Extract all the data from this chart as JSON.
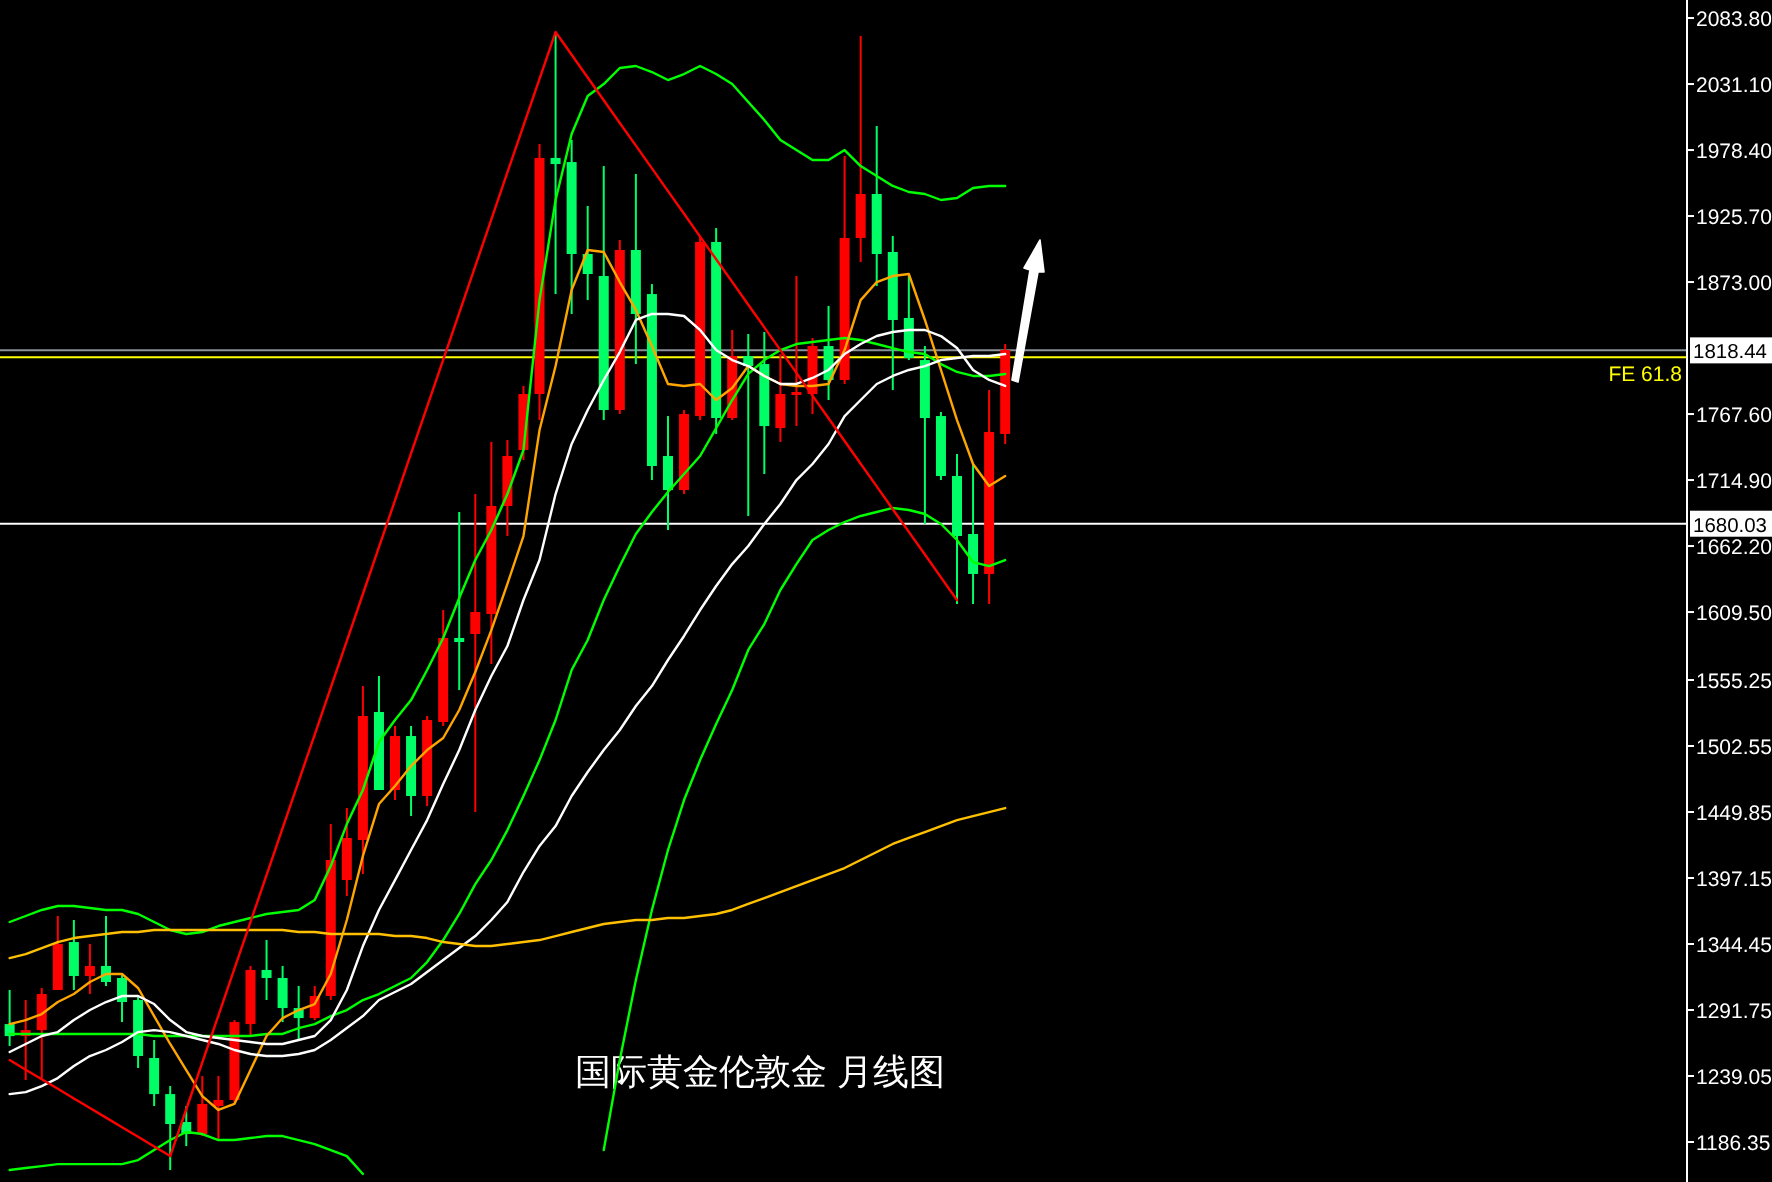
{
  "chart_data": {
    "type": "candlestick",
    "tick_labels": "y",
    "grid": false,
    "categories": [
      null,
      null,
      null,
      null,
      null,
      null,
      null,
      null,
      null,
      null,
      null,
      null,
      null,
      null,
      null,
      null,
      null,
      null,
      null,
      null,
      null,
      null,
      null,
      null,
      null,
      null,
      null,
      null,
      null,
      null,
      null,
      null,
      null,
      null,
      null,
      null,
      null,
      null,
      null,
      null,
      null,
      null,
      null,
      null,
      null,
      null,
      null,
      null,
      null,
      null,
      null,
      null,
      null,
      null,
      null,
      null,
      null,
      null,
      null,
      null,
      null,
      null,
      null
    ],
    "ylim": [
      1154.4,
      2098.2
    ],
    "yticks": [
      {
        "value": 2083.8,
        "label": "2083.80"
      },
      {
        "value": 2031.1,
        "label": "2031.10"
      },
      {
        "value": 1978.4,
        "label": "1978.40"
      },
      {
        "value": 1925.7,
        "label": "1925.70"
      },
      {
        "value": 1873,
        "label": "1873.00"
      },
      {
        "value": 1767.6,
        "label": "1767.60"
      },
      {
        "value": 1714.9,
        "label": "1714.90"
      },
      {
        "value": 1662.2,
        "label": "1662.20"
      },
      {
        "value": 1609.5,
        "label": "1609.50"
      },
      {
        "value": 1555.25,
        "label": "1555.25"
      },
      {
        "value": 1502.55,
        "label": "1502.55"
      },
      {
        "value": 1449.85,
        "label": "1449.85"
      },
      {
        "value": 1397.15,
        "label": "1397.15"
      },
      {
        "value": 1344.45,
        "label": "1344.45"
      },
      {
        "value": 1291.75,
        "label": "1291.75"
      },
      {
        "value": 1239.05,
        "label": "1239.05"
      },
      {
        "value": 1186.35,
        "label": "1186.35"
      }
    ],
    "ref_lines": [
      {
        "axis": "y",
        "value": 1818.44,
        "label": "1818.44",
        "color": "#8a9098"
      },
      {
        "axis": "y",
        "value": 1813,
        "label": "FE 61.8",
        "color": "#ffff00"
      },
      {
        "axis": "y",
        "value": 1680.03,
        "label": "1680.03",
        "color": "#ffffff"
      }
    ],
    "annotations": [
      "国际黄金伦敦金 月线图"
    ],
    "ohlc": [
      [
        1280.5,
        1307.7,
        1263.0,
        1270.9
      ],
      [
        1270.9,
        1299.7,
        1235.8,
        1275.7
      ],
      [
        1275.7,
        1309.3,
        1235.8,
        1304.5
      ],
      [
        1307.7,
        1366.8,
        1307.7,
        1344.4
      ],
      [
        1346.0,
        1363.6,
        1307.7,
        1318.9
      ],
      [
        1318.9,
        1344.4,
        1304.5,
        1326.9
      ],
      [
        1326.9,
        1366.8,
        1310.9,
        1314.1
      ],
      [
        1317.3,
        1320.5,
        1282.1,
        1298.1
      ],
      [
        1299.7,
        1302.9,
        1245.4,
        1255.0
      ],
      [
        1253.4,
        1267.8,
        1215.1,
        1224.6
      ],
      [
        1224.6,
        1231.0,
        1164.0,
        1200.7
      ],
      [
        1202.3,
        1215.1,
        1183.1,
        1192.7
      ],
      [
        1192.7,
        1239.0,
        1191.1,
        1216.7
      ],
      [
        1215.1,
        1239.0,
        1187.9,
        1219.9
      ],
      [
        1219.9,
        1283.7,
        1218.3,
        1282.1
      ],
      [
        1280.5,
        1326.9,
        1270.9,
        1323.7
      ],
      [
        1323.7,
        1347.6,
        1299.7,
        1317.3
      ],
      [
        1317.3,
        1326.9,
        1282.1,
        1293.3
      ],
      [
        1293.3,
        1310.9,
        1267.8,
        1285.3
      ],
      [
        1285.3,
        1310.9,
        1283.7,
        1302.9
      ],
      [
        1302.9,
        1440.2,
        1299.7,
        1411.5
      ],
      [
        1395.5,
        1453.0,
        1382.7,
        1429.1
      ],
      [
        1427.5,
        1550.4,
        1400.3,
        1526.5
      ],
      [
        1529.7,
        1558.4,
        1467.4,
        1467.4
      ],
      [
        1467.4,
        1518.5,
        1459.4,
        1510.5
      ],
      [
        1510.5,
        1518.5,
        1446.6,
        1462.6
      ],
      [
        1462.6,
        1526.5,
        1454.6,
        1523.3
      ],
      [
        1521.7,
        1611.1,
        1518.5,
        1588.8
      ],
      [
        1588.8,
        1689.4,
        1547.2,
        1585.6
      ],
      [
        1592.0,
        1703.7,
        1449.8,
        1609.5
      ],
      [
        1607.9,
        1745.3,
        1568.0,
        1694.2
      ],
      [
        1694.2,
        1746.9,
        1670.2,
        1734.1
      ],
      [
        1738.9,
        1790.0,
        1730.9,
        1783.6
      ],
      [
        1783.6,
        1983.2,
        1762.8,
        1972.1
      ],
      [
        1972.1,
        2072.6,
        1863.4,
        1967.2
      ],
      [
        1968.8,
        1986.4,
        1847.5,
        1895.4
      ],
      [
        1895.4,
        1933.7,
        1858.6,
        1879.4
      ],
      [
        1877.8,
        1965.6,
        1762.8,
        1770.8
      ],
      [
        1770.8,
        1906.6,
        1767.6,
        1898.6
      ],
      [
        1898.6,
        1959.3,
        1807.5,
        1847.5
      ],
      [
        1863.4,
        1871.4,
        1714.9,
        1726.1
      ],
      [
        1734.1,
        1766.0,
        1675.0,
        1706.9
      ],
      [
        1706.9,
        1770.8,
        1703.7,
        1767.6
      ],
      [
        1766.0,
        1909.8,
        1762.8,
        1905.0
      ],
      [
        1905.0,
        1916.1,
        1751.7,
        1764.4
      ],
      [
        1764.4,
        1834.7,
        1762.8,
        1813.9
      ],
      [
        1813.9,
        1831.5,
        1686.2,
        1805.9
      ],
      [
        1807.5,
        1833.1,
        1719.7,
        1758.0
      ],
      [
        1756.4,
        1815.5,
        1745.3,
        1783.6
      ],
      [
        1783.6,
        1877.8,
        1758.0,
        1785.2
      ],
      [
        1783.6,
        1828.3,
        1767.6,
        1821.9
      ],
      [
        1821.9,
        1853.9,
        1778.8,
        1794.8
      ],
      [
        1794.8,
        1973.6,
        1791.6,
        1908.2
      ],
      [
        1908.2,
        2069.5,
        1889.0,
        1943.3
      ],
      [
        1943.3,
        1997.6,
        1869.8,
        1895.4
      ],
      [
        1897.0,
        1909.8,
        1786.8,
        1842.7
      ],
      [
        1844.3,
        1877.8,
        1810.7,
        1812.3
      ],
      [
        1810.7,
        1821.9,
        1679.8,
        1764.4
      ],
      [
        1766.0,
        1769.2,
        1714.9,
        1718.1
      ],
      [
        1718.1,
        1735.7,
        1615.9,
        1670.2
      ],
      [
        1671.8,
        1727.7,
        1615.9,
        1639.9
      ],
      [
        1639.9,
        1786.8,
        1615.9,
        1753.3
      ],
      [
        1751.7,
        1823.5,
        1743.7,
        1818.7
      ]
    ],
    "series": [
      {
        "type": "line",
        "color": "#00ff00",
        "values": [
          1362.0,
          1366.8,
          1371.6,
          1374.8,
          1374.8,
          1373.2,
          1371.6,
          1371.6,
          1368.4,
          1362.0,
          1355.6,
          1352.4,
          1354.0,
          1358.8,
          1362.0,
          1365.2,
          1368.4,
          1370.0,
          1371.6,
          1379.6,
          1406.7,
          1440.2,
          1467.4,
          1505.7,
          1523.3,
          1539.2,
          1563.2,
          1588.8,
          1620.7,
          1651.0,
          1675.0,
          1703.7,
          1738.9,
          1858.6,
          1938.5,
          1991.2,
          2021.5,
          2031.1,
          2043.9,
          2045.5,
          2040.7,
          2034.3,
          2039.1,
          2045.5,
          2039.1,
          2031.1,
          2016.8,
          2002.4,
          1986.4,
          1978.4,
          1970.4,
          1970.4,
          1978.4,
          1965.6,
          1957.7,
          1949.7,
          1944.9,
          1943.3,
          1938.5,
          1940.1,
          1948.1,
          1949.7,
          1949.7
        ]
      },
      {
        "type": "line",
        "color": "#00ff00",
        "values": [
          1272.6,
          1272.6,
          1272.6,
          1272.6,
          1272.6,
          1272.6,
          1272.6,
          1272.6,
          1272.6,
          1271.0,
          1271.0,
          1271.0,
          1271.0,
          1271.0,
          1271.0,
          1271.0,
          1272.6,
          1272.6,
          1277.3,
          1280.5,
          1286.9,
          1291.7,
          1299.7,
          1304.5,
          1310.9,
          1317.3,
          1330.0,
          1347.6,
          1368.4,
          1392.3,
          1411.5,
          1435.4,
          1462.6,
          1491.3,
          1523.3,
          1563.2,
          1587.2,
          1619.1,
          1646.2,
          1671.8,
          1689.4,
          1705.3,
          1719.7,
          1734.1,
          1756.4,
          1778.8,
          1799.6,
          1810.7,
          1818.7,
          1823.5,
          1825.1,
          1826.7,
          1828.3,
          1826.7,
          1823.5,
          1820.3,
          1817.1,
          1815.5,
          1807.5,
          1801.2,
          1798.0,
          1798.0,
          1799.6
        ]
      },
      {
        "type": "line",
        "color": "#00ff00",
        "values": [
          1164.0,
          1165.6,
          1167.1,
          1168.7,
          1168.7,
          1168.7,
          1168.7,
          1168.7,
          1171.9,
          1179.9,
          1187.9,
          1194.3,
          1192.7,
          1187.9,
          1187.9,
          1189.5,
          1191.1,
          1191.1,
          1187.9,
          1184.7,
          1179.9,
          1175.1,
          1160.8,
          null,
          null,
          null,
          null,
          null,
          null,
          null,
          null,
          null,
          null,
          null,
          null,
          null,
          null,
          1179.9,
          1251.8,
          1315.7,
          1371.6,
          1419.5,
          1459.4,
          1491.3,
          1520.1,
          1547.2,
          1579.2,
          1599.9,
          1627.1,
          1647.8,
          1667.0,
          1675.0,
          1681.4,
          1686.2,
          1689.4,
          1692.6,
          1691.0,
          1687.8,
          1679.8,
          1667.0,
          1649.4,
          1646.2,
          1651.0
        ]
      },
      {
        "type": "line",
        "color": "#ffa500",
        "values": [
          1280.5,
          1283.7,
          1288.5,
          1298.1,
          1304.5,
          1314.1,
          1320.5,
          1320.5,
          1309.3,
          1286.9,
          1264.6,
          1243.8,
          1223.0,
          1211.9,
          1216.7,
          1243.8,
          1271.0,
          1285.3,
          1291.7,
          1296.5,
          1320.5,
          1363.6,
          1414.7,
          1456.2,
          1470.6,
          1486.5,
          1499.3,
          1508.9,
          1531.3,
          1561.6,
          1595.1,
          1631.9,
          1670.2,
          1754.8,
          1805.9,
          1866.6,
          1898.6,
          1897.0,
          1873.0,
          1850.7,
          1821.9,
          1791.6,
          1790.0,
          1791.6,
          1778.8,
          1788.4,
          1805.9,
          1798.0,
          1791.6,
          1790.0,
          1790.0,
          1791.6,
          1818.7,
          1858.6,
          1873.0,
          1877.8,
          1879.4,
          1842.7,
          1802.8,
          1762.8,
          1727.7,
          1710.1,
          1718.1
        ]
      },
      {
        "type": "line",
        "color": "#ffffff",
        "values": [
          1258.2,
          1264.6,
          1271.0,
          1274.1,
          1283.7,
          1291.7,
          1298.1,
          1302.9,
          1302.9,
          1296.5,
          1283.7,
          1274.1,
          1271.0,
          1269.4,
          1267.8,
          1266.2,
          1264.6,
          1264.6,
          1267.8,
          1271.0,
          1283.7,
          1307.7,
          1342.8,
          1371.6,
          1395.5,
          1419.5,
          1443.4,
          1472.2,
          1499.3,
          1531.3,
          1558.4,
          1582.4,
          1619.1,
          1651.0,
          1703.7,
          1743.7,
          1770.8,
          1794.8,
          1817.1,
          1842.7,
          1847.5,
          1847.5,
          1845.9,
          1834.7,
          1818.7,
          1810.7,
          1805.9,
          1798.0,
          1791.6,
          1791.6,
          1796.4,
          1802.8,
          1815.5,
          1823.5,
          1829.9,
          1833.1,
          1834.7,
          1834.7,
          1829.9,
          1820.3,
          1802.8,
          1794.8,
          1790.0
        ]
      },
      {
        "type": "line",
        "color": "#ffffff",
        "values": [
          1224.6,
          1226.2,
          1231.0,
          1237.4,
          1247.0,
          1255.0,
          1259.8,
          1266.2,
          1274.1,
          1275.7,
          1274.1,
          1271.0,
          1267.8,
          1264.6,
          1259.8,
          1256.6,
          1255.0,
          1255.0,
          1256.6,
          1259.8,
          1267.8,
          1277.3,
          1286.9,
          1299.7,
          1306.1,
          1312.5,
          1322.1,
          1331.6,
          1341.2,
          1350.8,
          1363.6,
          1378.0,
          1401.9,
          1422.7,
          1438.6,
          1462.6,
          1481.8,
          1499.3,
          1515.3,
          1534.5,
          1550.4,
          1571.2,
          1590.4,
          1611.1,
          1630.3,
          1647.8,
          1662.2,
          1679.8,
          1695.8,
          1714.9,
          1727.7,
          1743.7,
          1766.0,
          1778.8,
          1791.6,
          1798.0,
          1802.8,
          1805.9,
          1810.7,
          1812.3,
          1813.9,
          1813.9,
          1815.5
        ]
      },
      {
        "type": "line",
        "color": "#ffc000",
        "values": [
          1333.2,
          1336.4,
          1341.2,
          1346.0,
          1349.2,
          1350.8,
          1352.4,
          1354.0,
          1354.0,
          1355.6,
          1355.6,
          1355.6,
          1355.6,
          1355.6,
          1355.6,
          1355.6,
          1355.6,
          1355.6,
          1354.0,
          1354.0,
          1352.4,
          1352.4,
          1352.4,
          1352.4,
          1350.8,
          1350.8,
          1349.2,
          1346.0,
          1344.4,
          1342.8,
          1342.8,
          1344.4,
          1346.0,
          1347.6,
          1350.8,
          1354.0,
          1357.2,
          1360.4,
          1362.0,
          1363.6,
          1363.6,
          1365.2,
          1365.2,
          1366.8,
          1368.4,
          1371.6,
          1376.4,
          1381.1,
          1385.9,
          1390.7,
          1395.5,
          1400.3,
          1405.1,
          1411.5,
          1417.9,
          1424.3,
          1429.1,
          1433.8,
          1438.6,
          1443.4,
          1446.6,
          1449.8,
          1453.0
        ]
      },
      {
        "type": "line",
        "color": "#ff0000",
        "values": [
          1251.8,
          1244.1,
          1236.5,
          1228.8,
          1221.1,
          1213.5,
          1205.8,
          1198.1,
          1190.5,
          1182.8,
          1175.1,
          1212.5,
          1249.9,
          1287.3,
          1324.7,
          1362.1,
          1399.5,
          1436.9,
          1474.3,
          1511.7,
          1549.1,
          1586.5,
          1623.9,
          1661.3,
          1698.7,
          1736.1,
          1773.5,
          1810.9,
          1848.3,
          1885.7,
          1923.1,
          1960.5,
          1997.9,
          2035.3,
          2072.6,
          2054.5,
          2036.3,
          2018.2,
          2000.0,
          1981.9,
          1963.8,
          1945.6,
          1927.5,
          1909.3,
          1891.2,
          1873.1,
          1854.9,
          1836.8,
          1818.6,
          1800.5,
          1782.3,
          1764.2,
          1746.1,
          1727.9,
          1709.8,
          1691.6,
          1673.5,
          1655.4,
          1637.2,
          1619.1,
          null,
          null,
          null
        ]
      }
    ]
  }
}
